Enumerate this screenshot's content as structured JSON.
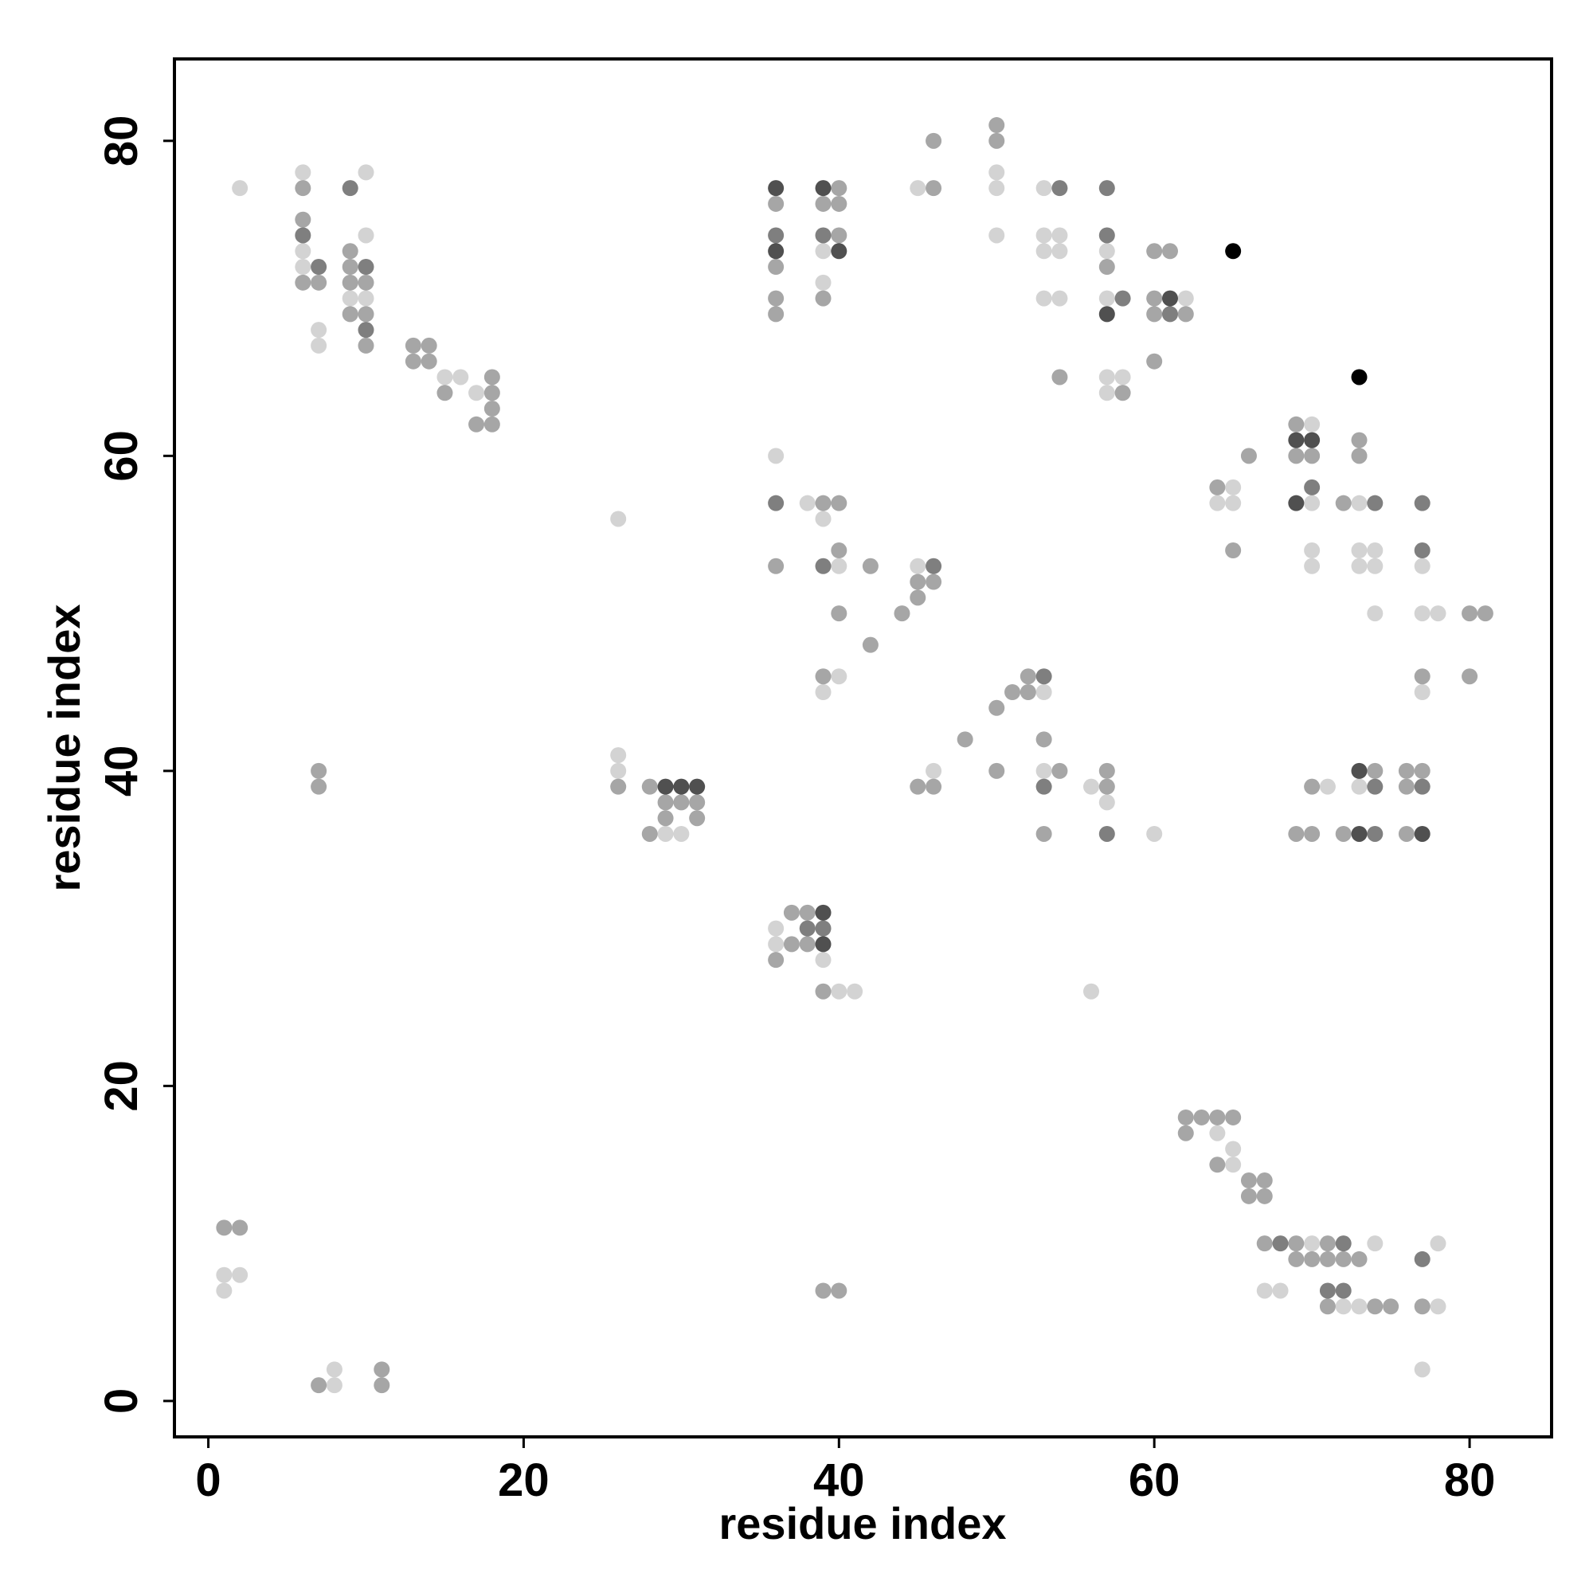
{
  "chart_data": {
    "type": "scatter",
    "xlabel": "residue index",
    "ylabel": "residue index",
    "xlim": [
      -2.15,
      85.2
    ],
    "ylim": [
      -2.28,
      85.2
    ],
    "xticks": [
      0,
      20,
      40,
      60,
      80
    ],
    "yticks": [
      0,
      20,
      40,
      60,
      80
    ],
    "series": [
      {
        "color": "#d3d3d3",
        "x": [
          2,
          6,
          6,
          6,
          7,
          7,
          9,
          10,
          10,
          10,
          15,
          16,
          17,
          26,
          26,
          26,
          29,
          30,
          36,
          36,
          36,
          38,
          39,
          39,
          39,
          39,
          39,
          40,
          40,
          40,
          41,
          45,
          45,
          46,
          50,
          50,
          50,
          53,
          53,
          53,
          53,
          53,
          53,
          54,
          54,
          54,
          56,
          56,
          57,
          57,
          57,
          57,
          57,
          58,
          60,
          62,
          64,
          65,
          65,
          70,
          70,
          70,
          70,
          71,
          73,
          73,
          73,
          73,
          74,
          74,
          74,
          77,
          77,
          77,
          77,
          78,
          78,
          78,
          1,
          1,
          2,
          8,
          8,
          64,
          65,
          65,
          67,
          68,
          70,
          72,
          73,
          74
        ],
        "values": [
          77,
          78,
          73,
          72,
          68,
          67,
          70,
          78,
          74,
          70,
          65,
          65,
          64,
          56,
          41,
          40,
          36,
          36,
          60,
          30,
          29,
          57,
          73,
          71,
          56,
          45,
          28,
          53,
          46,
          26,
          26,
          77,
          53,
          40,
          78,
          77,
          74,
          77,
          74,
          73,
          70,
          45,
          40,
          74,
          73,
          70,
          39,
          26,
          73,
          70,
          65,
          64,
          38,
          65,
          36,
          70,
          57,
          58,
          57,
          62,
          57,
          54,
          53,
          39,
          57,
          54,
          53,
          39,
          54,
          53,
          50,
          53,
          50,
          45,
          2,
          50,
          10,
          6,
          8,
          7,
          8,
          2,
          1,
          17,
          16,
          15,
          7,
          7,
          10,
          6,
          6,
          10
        ]
      },
      {
        "color": "#a6a6a6",
        "x": [
          6,
          6,
          6,
          7,
          9,
          9,
          9,
          9,
          10,
          10,
          10,
          13,
          13,
          14,
          14,
          15,
          17,
          18,
          18,
          18,
          18,
          7,
          7,
          26,
          28,
          28,
          29,
          29,
          30,
          31,
          31,
          36,
          36,
          36,
          36,
          36,
          36,
          37,
          37,
          38,
          38,
          39,
          39,
          39,
          39,
          39,
          39,
          40,
          40,
          40,
          40,
          40,
          40,
          40,
          42,
          42,
          44,
          45,
          45,
          45,
          46,
          46,
          46,
          46,
          48,
          50,
          50,
          50,
          50,
          51,
          52,
          52,
          53,
          53,
          54,
          54,
          57,
          57,
          57,
          58,
          60,
          60,
          60,
          60,
          61,
          62,
          64,
          65,
          66,
          69,
          69,
          69,
          70,
          70,
          70,
          72,
          72,
          73,
          73,
          74,
          76,
          76,
          76,
          77,
          77,
          77,
          80,
          80,
          81,
          1,
          2,
          7,
          11,
          11,
          62,
          62,
          63,
          64,
          64,
          65,
          66,
          66,
          67,
          67,
          67,
          69,
          69,
          70,
          71,
          71,
          71,
          72,
          73,
          74,
          75
        ],
        "values": [
          77,
          75,
          71,
          71,
          73,
          72,
          71,
          69,
          71,
          69,
          67,
          67,
          66,
          67,
          66,
          64,
          62,
          65,
          64,
          63,
          62,
          40,
          39,
          39,
          39,
          36,
          38,
          37,
          38,
          38,
          37,
          76,
          72,
          70,
          69,
          53,
          28,
          31,
          29,
          31,
          29,
          76,
          70,
          57,
          46,
          26,
          7,
          77,
          76,
          74,
          57,
          54,
          50,
          7,
          53,
          48,
          50,
          52,
          51,
          39,
          80,
          77,
          52,
          39,
          42,
          81,
          80,
          44,
          40,
          45,
          46,
          45,
          42,
          36,
          65,
          40,
          72,
          40,
          39,
          64,
          73,
          70,
          69,
          66,
          73,
          69,
          58,
          54,
          60,
          62,
          60,
          36,
          60,
          39,
          36,
          57,
          36,
          61,
          60,
          40,
          40,
          39,
          36,
          46,
          40,
          6,
          50,
          46,
          50,
          11,
          11,
          1,
          2,
          1,
          18,
          17,
          18,
          18,
          15,
          18,
          14,
          13,
          14,
          13,
          10,
          10,
          9,
          9,
          10,
          9,
          6,
          9,
          9,
          6,
          6
        ]
      },
      {
        "color": "#7f7f7f",
        "x": [
          6,
          7,
          9,
          10,
          10,
          36,
          36,
          38,
          39,
          39,
          39,
          46,
          53,
          53,
          54,
          57,
          57,
          57,
          58,
          61,
          70,
          74,
          74,
          74,
          77,
          77,
          77,
          77,
          68,
          71,
          72,
          72
        ],
        "values": [
          74,
          72,
          77,
          72,
          68,
          74,
          57,
          30,
          74,
          53,
          30,
          53,
          46,
          39,
          77,
          77,
          74,
          36,
          70,
          69,
          58,
          57,
          39,
          36,
          57,
          54,
          39,
          9,
          10,
          7,
          10,
          7
        ]
      },
      {
        "color": "#505050",
        "x": [
          29,
          30,
          31,
          36,
          36,
          39,
          39,
          39,
          40,
          57,
          61,
          69,
          69,
          70,
          73,
          73,
          77
        ],
        "values": [
          39,
          39,
          39,
          77,
          73,
          77,
          31,
          29,
          73,
          69,
          70,
          61,
          57,
          61,
          40,
          36,
          36
        ]
      },
      {
        "color": "#000000",
        "x": [
          65,
          73
        ],
        "values": [
          73,
          65
        ]
      }
    ]
  }
}
